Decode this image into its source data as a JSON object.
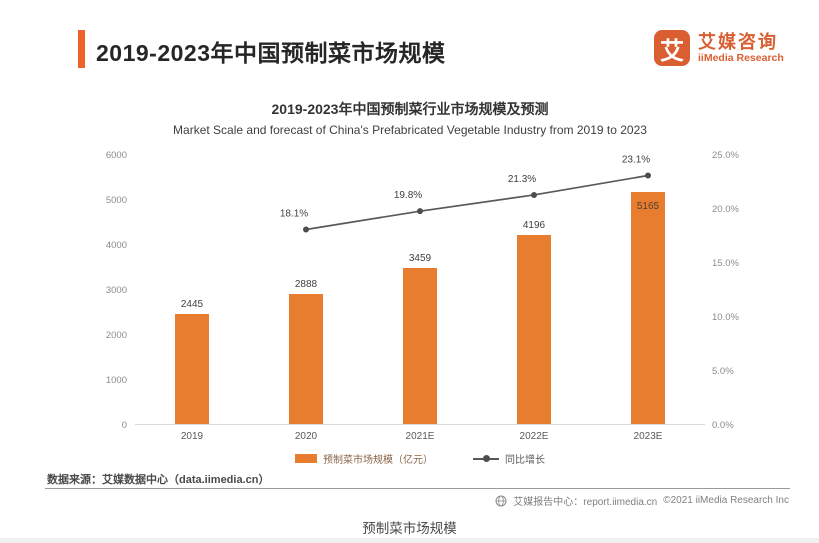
{
  "page": {
    "header_title": "2019-2023年中国预制菜市场规模",
    "caption": "预制菜市场规模"
  },
  "logo": {
    "glyph": "艾",
    "name_cn": "艾媒咨询",
    "name_en": "iiMedia Research"
  },
  "chart_data": {
    "type": "bar",
    "title_cn": "2019-2023年中国预制菜行业市场规模及预测",
    "title_en": "Market Scale and forecast of China's Prefabricated Vegetable Industry from 2019 to 2023",
    "categories": [
      "2019",
      "2020",
      "2021E",
      "2022E",
      "2023E"
    ],
    "series": [
      {
        "name": "预制菜市场规模（亿元）",
        "type": "bar",
        "values": [
          2445,
          2888,
          3459,
          4196,
          5165
        ],
        "color": "#e87d2f",
        "inside_label_index": 4
      },
      {
        "name": "同比增长",
        "type": "line",
        "values": [
          null,
          18.1,
          19.8,
          21.3,
          23.1
        ],
        "labels": [
          "",
          "18.1%",
          "19.8%",
          "21.3%",
          "23.1%"
        ],
        "color": "#595959"
      }
    ],
    "left_axis": {
      "min": 0,
      "max": 6000,
      "ticks": [
        "6000",
        "5000",
        "4000",
        "3000",
        "2000",
        "1000",
        "0"
      ]
    },
    "right_axis": {
      "min": 0,
      "max": 25,
      "ticks": [
        "25.0%",
        "20.0%",
        "15.0%",
        "10.0%",
        "5.0%",
        "0.0%"
      ]
    },
    "legend": [
      {
        "label": "预制菜市场规模（亿元）",
        "marker": "bar"
      },
      {
        "label": "同比增长",
        "marker": "line"
      }
    ],
    "grid": false,
    "legend_position": "bottom"
  },
  "source_note": "数据来源：艾媒数据中心（data.iimedia.cn）",
  "footer": {
    "report_center": "艾媒报告中心：report.iimedia.cn",
    "copyright": "©2021  iiMedia Research  Inc"
  }
}
